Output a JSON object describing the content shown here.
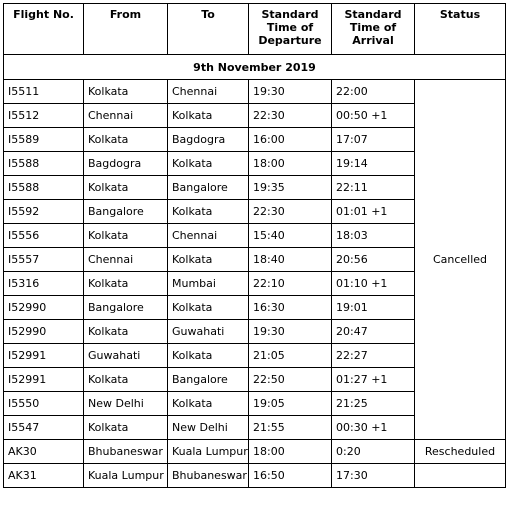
{
  "header": {
    "flight_no": "Flight No.",
    "from": "From",
    "to": "To",
    "departure": [
      "Standard",
      "Time of",
      "Departure"
    ],
    "arrival": [
      "Standard",
      "Time of",
      "Arrival"
    ],
    "status": "Status"
  },
  "date_label": "9th November 2019",
  "rows": [
    {
      "flight": "I5511",
      "from": "Kolkata",
      "to": "Chennai",
      "dep": "19:30",
      "arr": "22:00"
    },
    {
      "flight": "I5512",
      "from": "Chennai",
      "to": "Kolkata",
      "dep": "22:30",
      "arr": "00:50 +1"
    },
    {
      "flight": "I5589",
      "from": "Kolkata",
      "to": "Bagdogra",
      "dep": "16:00",
      "arr": "17:07"
    },
    {
      "flight": "I5588",
      "from": "Bagdogra",
      "to": "Kolkata",
      "dep": "18:00",
      "arr": "19:14"
    },
    {
      "flight": "I5588",
      "from": "Kolkata",
      "to": "Bangalore",
      "dep": "19:35",
      "arr": "22:11"
    },
    {
      "flight": "I5592",
      "from": "Bangalore",
      "to": "Kolkata",
      "dep": "22:30",
      "arr": "01:01 +1"
    },
    {
      "flight": "I5556",
      "from": "Kolkata",
      "to": "Chennai",
      "dep": "15:40",
      "arr": "18:03"
    },
    {
      "flight": "I5557",
      "from": "Chennai",
      "to": "Kolkata",
      "dep": "18:40",
      "arr": "20:56"
    },
    {
      "flight": "I5316",
      "from": "Kolkata",
      "to": "Mumbai",
      "dep": "22:10",
      "arr": "01:10 +1"
    },
    {
      "flight": "I52990",
      "from": "Bangalore",
      "to": "Kolkata",
      "dep": "16:30",
      "arr": "19:01"
    },
    {
      "flight": "I52990",
      "from": "Kolkata",
      "to": "Guwahati",
      "dep": "19:30",
      "arr": "20:47"
    },
    {
      "flight": "I52991",
      "from": "Guwahati",
      "to": "Kolkata",
      "dep": "21:05",
      "arr": "22:27"
    },
    {
      "flight": "I52991",
      "from": "Kolkata",
      "to": "Bangalore",
      "dep": "22:50",
      "arr": "01:27 +1"
    },
    {
      "flight": "I5550",
      "from": "New Delhi",
      "to": "Kolkata",
      "dep": "19:05",
      "arr": "21:25"
    },
    {
      "flight": "I5547",
      "from": "Kolkata",
      "to": "New Delhi",
      "dep": "21:55",
      "arr": "00:30 +1"
    },
    {
      "flight": "AK30",
      "from": "Bhubaneswar",
      "to": "Kuala Lumpur",
      "dep": "18:00",
      "arr": "0:20"
    },
    {
      "flight": "AK31",
      "from": "Kuala Lumpur",
      "to": "Bhubaneswar",
      "dep": "16:50",
      "arr": "17:30"
    }
  ],
  "status_cancelled": "Cancelled",
  "status_rescheduled": "Rescheduled"
}
